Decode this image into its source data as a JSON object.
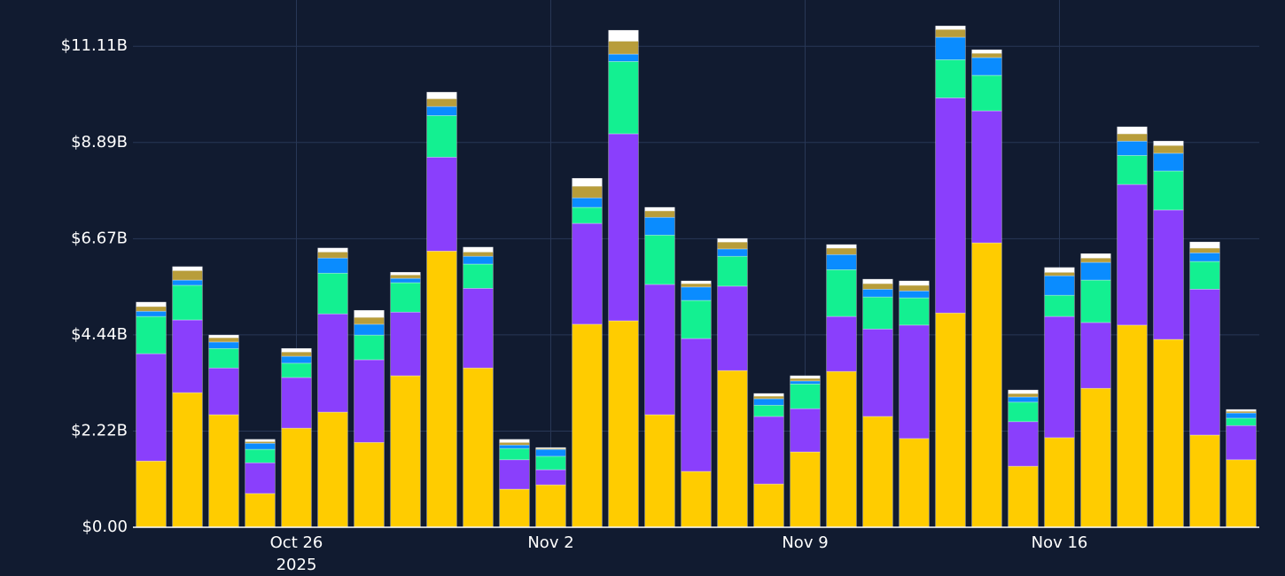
{
  "chart_data": {
    "type": "stacked_bar",
    "x": [
      "2025-10-22",
      "2025-10-23",
      "2025-10-24",
      "2025-10-25",
      "2025-10-26",
      "2025-10-27",
      "2025-10-28",
      "2025-10-29",
      "2025-10-30",
      "2025-10-31",
      "2025-11-01",
      "2025-11-02",
      "2025-11-03",
      "2025-11-04",
      "2025-11-05",
      "2025-11-06",
      "2025-11-07",
      "2025-11-08",
      "2025-11-09",
      "2025-11-10",
      "2025-11-11",
      "2025-11-12",
      "2025-11-13",
      "2025-11-14",
      "2025-11-15",
      "2025-11-16",
      "2025-11-17",
      "2025-11-18",
      "2025-11-19",
      "2025-11-20",
      "2025-11-21"
    ],
    "xticks": [
      {
        "value": "2025-10-26",
        "label": "Oct 26\n2025"
      },
      {
        "value": "2025-11-02",
        "label": "Nov 2"
      },
      {
        "value": "2025-11-09",
        "label": "Nov 9"
      },
      {
        "value": "2025-11-16",
        "label": "Nov 16"
      }
    ],
    "ylim": [
      0,
      12.18
    ],
    "yticks": [
      {
        "value": 0,
        "label": "$0.00"
      },
      {
        "value": 2.222,
        "label": "$2.22B"
      },
      {
        "value": 4.444,
        "label": "$4.44B"
      },
      {
        "value": 6.667,
        "label": "$6.67B"
      },
      {
        "value": 8.889,
        "label": "$8.89B"
      },
      {
        "value": 11.111,
        "label": "$11.11B"
      }
    ],
    "grid": true,
    "series": [
      {
        "color": "#ffcc00",
        "values": [
          1.53,
          3.11,
          2.6,
          0.78,
          2.29,
          2.66,
          1.96,
          3.5,
          6.38,
          3.68,
          0.88,
          0.98,
          4.69,
          4.77,
          2.6,
          1.29,
          3.62,
          1.0,
          1.74,
          3.6,
          2.56,
          2.05,
          4.95,
          6.57,
          1.41,
          2.07,
          3.21,
          4.67,
          4.34,
          2.13,
          1.56
        ]
      },
      {
        "color": "#8a3ffc",
        "values": [
          2.48,
          1.68,
          1.08,
          0.71,
          1.17,
          2.27,
          1.91,
          1.47,
          2.17,
          1.84,
          0.68,
          0.35,
          2.33,
          4.32,
          3.01,
          3.07,
          1.95,
          1.56,
          1.0,
          1.27,
          2.02,
          2.62,
          4.97,
          3.05,
          1.03,
          2.8,
          1.52,
          3.25,
          2.99,
          3.37,
          0.79
        ]
      },
      {
        "color": "#13f091",
        "values": [
          0.86,
          0.8,
          0.45,
          0.31,
          0.33,
          0.94,
          0.57,
          0.68,
          0.96,
          0.56,
          0.26,
          0.31,
          0.37,
          1.67,
          1.14,
          0.88,
          0.69,
          0.26,
          0.57,
          1.08,
          0.74,
          0.63,
          0.88,
          0.82,
          0.45,
          0.49,
          0.98,
          0.67,
          0.9,
          0.64,
          0.17
        ]
      },
      {
        "color": "#0a8cff",
        "values": [
          0.12,
          0.12,
          0.15,
          0.14,
          0.16,
          0.35,
          0.25,
          0.1,
          0.21,
          0.18,
          0.08,
          0.16,
          0.22,
          0.17,
          0.41,
          0.31,
          0.17,
          0.15,
          0.07,
          0.35,
          0.18,
          0.16,
          0.52,
          0.41,
          0.12,
          0.45,
          0.41,
          0.33,
          0.41,
          0.2,
          0.12
        ]
      },
      {
        "color": "#b89d3a",
        "values": [
          0.11,
          0.22,
          0.1,
          0.04,
          0.1,
          0.14,
          0.16,
          0.08,
          0.18,
          0.1,
          0.06,
          0.02,
          0.27,
          0.3,
          0.15,
          0.08,
          0.16,
          0.06,
          0.06,
          0.15,
          0.13,
          0.13,
          0.18,
          0.1,
          0.08,
          0.08,
          0.1,
          0.17,
          0.18,
          0.11,
          0.04
        ]
      },
      {
        "color": "#ffffff",
        "values": [
          0.1,
          0.09,
          0.06,
          0.05,
          0.08,
          0.09,
          0.16,
          0.06,
          0.15,
          0.11,
          0.07,
          0.02,
          0.18,
          0.25,
          0.08,
          0.06,
          0.08,
          0.06,
          0.06,
          0.08,
          0.1,
          0.1,
          0.08,
          0.08,
          0.08,
          0.11,
          0.1,
          0.16,
          0.1,
          0.14,
          0.04
        ]
      }
    ]
  }
}
